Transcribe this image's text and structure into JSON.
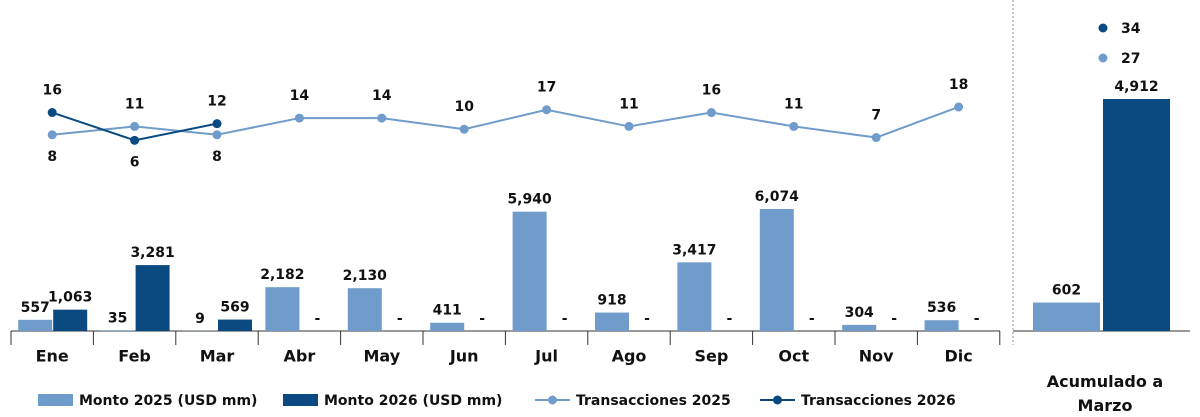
{
  "chart_data": [
    {
      "type": "combo",
      "categories": [
        "Ene",
        "Feb",
        "Mar",
        "Abr",
        "May",
        "Jun",
        "Jul",
        "Ago",
        "Sep",
        "Oct",
        "Nov",
        "Dic"
      ],
      "series": [
        {
          "name": "Monto 2025 (USD mm)",
          "type": "bar",
          "color": "#6f9ccb",
          "values": [
            557,
            35,
            9,
            2182,
            2130,
            411,
            5940,
            918,
            3417,
            6074,
            304,
            536
          ],
          "value_labels": [
            "557",
            "35",
            "9",
            "2,182",
            "2,130",
            "411",
            "5,940",
            "918",
            "3,417",
            "6,074",
            "304",
            "536"
          ]
        },
        {
          "name": "Monto 2026 (USD mm)",
          "type": "bar",
          "color": "#0a4a80",
          "values": [
            1063,
            3281,
            569,
            null,
            null,
            null,
            null,
            null,
            null,
            null,
            null,
            null
          ],
          "value_labels": [
            "1,063",
            "3,281",
            "569",
            "-",
            "-",
            "-",
            "-",
            "-",
            "-",
            "-",
            "-",
            "-"
          ]
        },
        {
          "name": "Transacciones 2025",
          "type": "line",
          "color": "#6f9ccb",
          "values": [
            8,
            11,
            8,
            14,
            14,
            10,
            17,
            11,
            16,
            11,
            7,
            18
          ]
        },
        {
          "name": "Transacciones 2026",
          "type": "line",
          "color": "#0a4a80",
          "values": [
            16,
            6,
            12,
            null,
            null,
            null,
            null,
            null,
            null,
            null,
            null,
            null
          ]
        }
      ]
    },
    {
      "type": "bar",
      "x_label": "Acumulado a Marzo",
      "series": [
        {
          "color": "#6f9ccb",
          "values": [
            602
          ],
          "value_labels": [
            "602"
          ]
        },
        {
          "color": "#0a4a80",
          "values": [
            4912
          ],
          "value_labels": [
            "4,912"
          ]
        }
      ],
      "markers": [
        {
          "color": "#0a4a80",
          "value": 34
        },
        {
          "color": "#6f9ccb",
          "value": 27
        }
      ]
    }
  ]
}
